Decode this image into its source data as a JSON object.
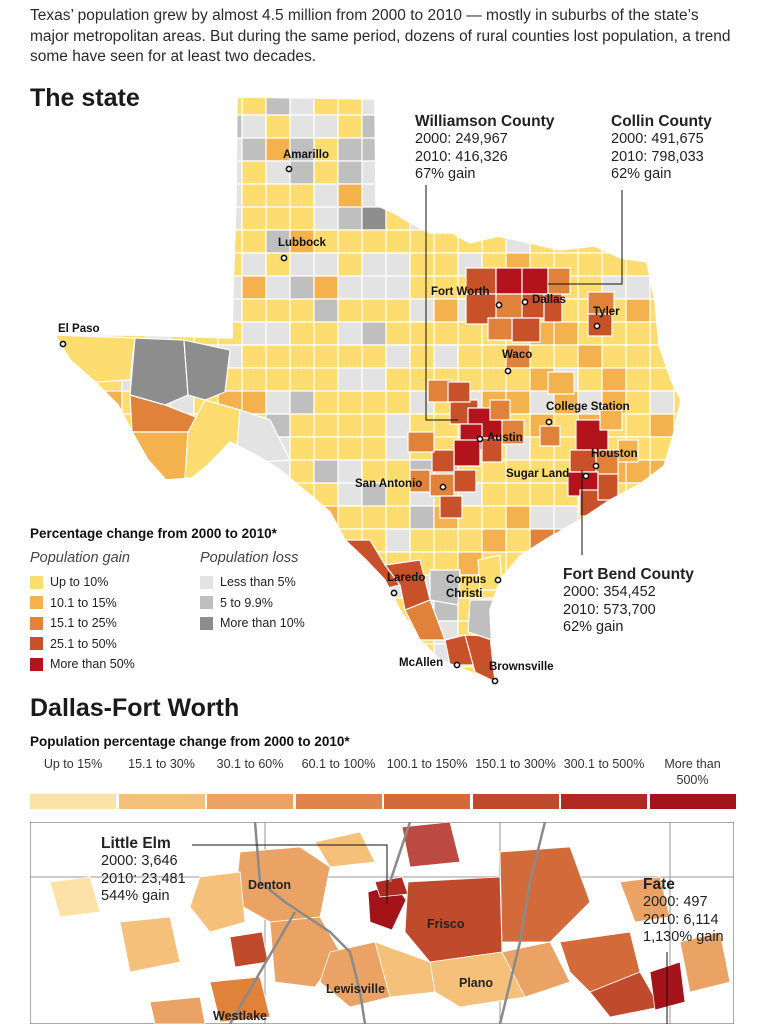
{
  "intro": "Texas’ population grew by almost 4.5 million from 2000 to 2010 — mostly in suburbs of the state’s major metropolitan areas. But during the same period, dozens of rural counties lost population, a trend some have seen for at least two decades.",
  "state_heading": "The state",
  "cities": {
    "amarillo": "Amarillo",
    "lubbock": "Lubbock",
    "el_paso": "El Paso",
    "fort_worth": "Fort Worth",
    "dallas": "Dallas",
    "tyler": "Tyler",
    "waco": "Waco",
    "college_station": "College Station",
    "austin": "Austin",
    "houston": "Houston",
    "sugar_land": "Sugar Land",
    "san_antonio": "San Antonio",
    "laredo": "Laredo",
    "corpus_christi": "Corpus Christi",
    "mcallen": "McAllen",
    "brownsville": "Brownsville"
  },
  "callouts": {
    "williamson": {
      "title": "Williamson County",
      "line1": "2000: 249,967",
      "line2": "2010: 416,326",
      "line3": "67% gain"
    },
    "collin": {
      "title": "Collin County",
      "line1": "2000: 491,675",
      "line2": "2010: 798,033",
      "line3": "62% gain"
    },
    "fort_bend": {
      "title": "Fort Bend County",
      "line1": "2000: 354,452",
      "line2": "2010: 573,700",
      "line3": "62% gain"
    }
  },
  "legend": {
    "title": "Percentage change from 2000 to 2010*",
    "gain_heading": "Population gain",
    "loss_heading": "Population loss",
    "gain": [
      {
        "label": "Up to 10%",
        "color": "#fddc70"
      },
      {
        "label": "10.1 to 15%",
        "color": "#f3b24e"
      },
      {
        "label": "15.1 to 25%",
        "color": "#e0823a"
      },
      {
        "label": "25.1 to 50%",
        "color": "#c9512a"
      },
      {
        "label": "More than 50%",
        "color": "#b3141b"
      }
    ],
    "loss": [
      {
        "label": "Less than 5%",
        "color": "#e3e3e3"
      },
      {
        "label": "5 to 9.9%",
        "color": "#bfbfbf"
      },
      {
        "label": "More than 10%",
        "color": "#8d8d8d"
      }
    ]
  },
  "dfw": {
    "heading": "Dallas-Fort Worth",
    "subtitle": "Population percentage change from 2000 to 2010*",
    "legend": [
      {
        "label": "Up to 15%",
        "color": "#fce2a6"
      },
      {
        "label": "15.1 to 30%",
        "color": "#f4c07a"
      },
      {
        "label": "30.1 to 60%",
        "color": "#eba265"
      },
      {
        "label": "60.1 to 100%",
        "color": "#e0844c"
      },
      {
        "label": "100.1 to 150%",
        "color": "#d26a3a"
      },
      {
        "label": "150.1 to 300%",
        "color": "#bf4a2c"
      },
      {
        "label": "300.1 to 500%",
        "color": "#b12a22"
      },
      {
        "label": "More than 500%",
        "color": "#a4121a"
      }
    ],
    "places": {
      "denton": "Denton",
      "frisco": "Frisco",
      "lewisville": "Lewisville",
      "plano": "Plano",
      "westlake": "Westlake"
    },
    "little_elm": {
      "title": "Little Elm",
      "line1": "2000: 3,646",
      "line2": "2010: 23,481",
      "line3": "544% gain"
    },
    "fate": {
      "title": "Fate",
      "line1": "2000: 497",
      "line2": "2010: 6,114",
      "line3": "1,130% gain"
    }
  }
}
